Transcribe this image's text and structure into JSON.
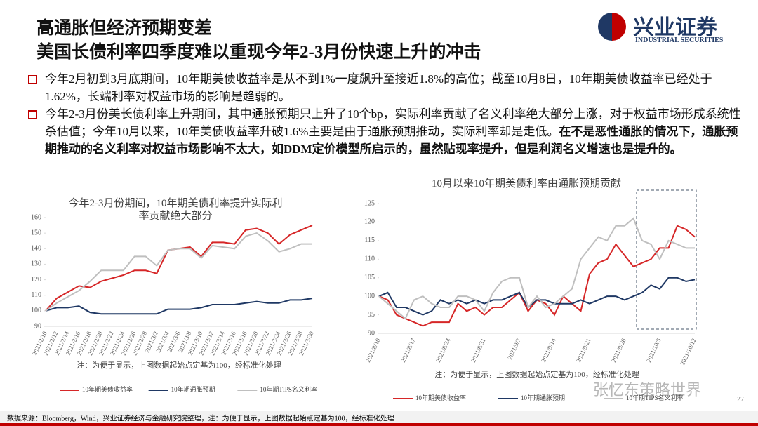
{
  "header": {
    "title1": "高通胀但经济预期变差",
    "title2": "美国长债利率四季度难以重现今年2-3月份快速上升的冲击"
  },
  "logo": {
    "name": "兴业证券",
    "sub": "INDUSTRIAL SECURITIES"
  },
  "bullets": [
    {
      "text": "今年2月初到3月底期间，10年期美债收益率是从不到1%一度飙升至接近1.8%的高位；截至10月8日，10年期美债收益率已经处于1.62%，长端利率对权益市场的影响是趋弱的。"
    },
    {
      "text": "今年2-3月份美长债利率上升期间，其中通胀预期只上升了10个bp，实际利率贡献了名义利率绝大部分上涨，对于权益市场形成系统性杀估值；今年10月以来，10年美债收益率升破1.6%主要是由于通胀预期推动，实际利率却是走低。",
      "bold": "在不是恶性通胀的情况下，通胀预期推动的名义利率对权益市场影响不太大，如DDM定价模型所启示的，虽然贴现率提升，但是利润名义增速也是提升的。"
    }
  ],
  "chart_data": [
    {
      "type": "line",
      "title": [
        "今年2-3月份期间，10年期美债利率提升实际利",
        "率贡献绝大部分"
      ],
      "categories": [
        "2021/2/10",
        "2021/2/12",
        "2021/2/14",
        "2021/2/16",
        "2021/2/18",
        "2021/2/20",
        "2021/2/22",
        "2021/2/24",
        "2021/2/26",
        "2021/2/28",
        "2021/3/2",
        "2021/3/4",
        "2021/3/6",
        "2021/3/8",
        "2021/3/10",
        "2021/3/12",
        "2021/3/14",
        "2021/3/16",
        "2021/3/18",
        "2021/3/20",
        "2021/3/22",
        "2021/3/24",
        "2021/3/26",
        "2021/3/28",
        "2021/3/30"
      ],
      "series": [
        {
          "name": "10年期美债收益率",
          "color": "#d62728",
          "values": [
            100,
            108,
            112,
            116,
            115,
            119,
            121,
            123,
            126,
            126,
            124,
            139,
            140,
            141,
            135,
            144,
            144,
            143,
            152,
            153,
            150,
            143,
            149,
            152,
            155
          ]
        },
        {
          "name": "10年期通胀预期",
          "color": "#1f3864",
          "values": [
            100,
            102,
            102,
            103,
            99,
            98,
            98,
            98,
            98,
            98,
            98,
            101,
            101,
            101,
            102,
            104,
            104,
            104,
            105,
            106,
            105,
            105,
            107,
            107,
            108
          ]
        },
        {
          "name": "10年期TIPS名义利率",
          "color": "#bfbfbf",
          "values": [
            100,
            105,
            109,
            113,
            119,
            126,
            126,
            126,
            135,
            135,
            129,
            139,
            140,
            140,
            134,
            142,
            141,
            140,
            148,
            150,
            145,
            138,
            140,
            143,
            143
          ]
        }
      ],
      "ylim": [
        90,
        160
      ],
      "yticks": [
        90,
        100,
        110,
        120,
        130,
        140,
        150,
        160
      ],
      "note": "注：为便于显示，上图数据起始点定基为100，经标准化处理"
    },
    {
      "type": "line",
      "title": [
        "10月以来10年期美债利率由通胀预期贡献"
      ],
      "categories": [
        "2021/8/10",
        null,
        null,
        null,
        "2021/8/17",
        null,
        null,
        null,
        "2021/8/24",
        null,
        null,
        null,
        "2021/8/31",
        null,
        null,
        null,
        "2021/9/7",
        null,
        null,
        null,
        "2021/9/14",
        null,
        null,
        null,
        "2021/9/21",
        null,
        null,
        null,
        "2021/9/28",
        null,
        null,
        null,
        "2021/10/5",
        null,
        null,
        null,
        "2021/10/12"
      ],
      "series": [
        {
          "name": "10年期美债收益率",
          "color": "#d62728",
          "values": [
            100,
            99,
            95,
            94,
            93,
            92,
            93,
            93,
            93,
            98,
            96,
            97,
            95,
            97,
            97,
            99,
            101,
            96,
            99,
            98,
            95,
            100,
            98,
            96,
            106,
            109,
            110,
            114,
            111,
            108,
            109,
            110,
            113,
            113,
            119,
            118,
            116
          ]
        },
        {
          "name": "10年期通胀预期",
          "color": "#1f3864",
          "values": [
            100,
            101,
            97,
            97,
            96,
            95,
            96,
            99,
            98,
            99,
            98,
            99,
            98,
            99,
            99,
            100,
            101,
            97,
            99,
            99,
            98,
            98,
            98,
            99,
            98,
            99,
            100,
            100,
            99,
            100,
            101,
            103,
            102,
            105,
            105,
            104,
            104.5
          ]
        },
        {
          "name": "10年期TIPS名义利率",
          "color": "#bfbfbf",
          "values": [
            100,
            98,
            96,
            94,
            99,
            100,
            98,
            97,
            97,
            100,
            100,
            99,
            96,
            101,
            104,
            105,
            105,
            97,
            100,
            97,
            98,
            100,
            102,
            110,
            113,
            116,
            115,
            119,
            119,
            121,
            115,
            114,
            110,
            115,
            114,
            113,
            113
          ]
        }
      ],
      "ylim": [
        90,
        125
      ],
      "yticks": [
        90,
        95,
        100,
        105,
        110,
        115,
        120,
        125
      ],
      "note": "注：为便于显示，上图数据起始点定基为100，经标准化处理"
    }
  ],
  "footer": {
    "source": "数据来源：Bloomberg，Wind，兴业证券经济与金融研究院整理，注：为便于显示，上图数据起始点定基为100，经标准化处理",
    "page": "27",
    "watermark": "张忆东策略世界"
  }
}
